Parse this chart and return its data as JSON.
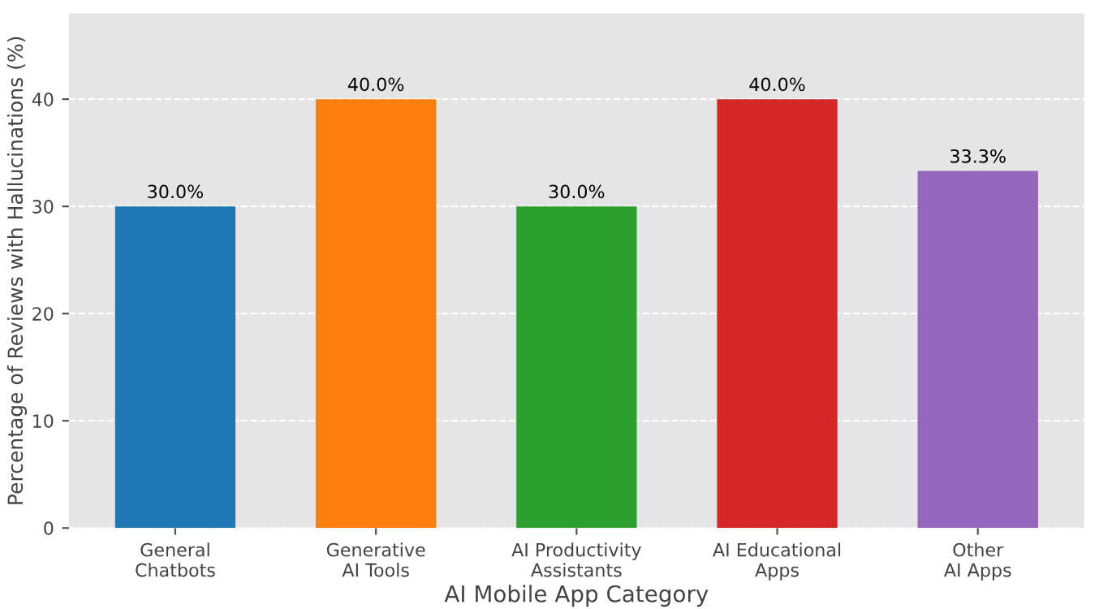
{
  "chart_data": {
    "type": "bar",
    "xlabel": "AI Mobile App Category",
    "ylabel": "Percentage of Reviews with Hallucinations (%)",
    "categories": [
      "General\nChatbots",
      "Generative\nAI Tools",
      "AI Productivity\nAssistants",
      "AI Educational\nApps",
      "Other\nAI Apps"
    ],
    "values": [
      30.0,
      40.0,
      30.0,
      40.0,
      33.3
    ],
    "colors": [
      "#1f77b4",
      "#ff7f0e",
      "#2ca02c",
      "#d62728",
      "#9467bd"
    ],
    "value_labels": [
      "30.0%",
      "40.0%",
      "30.0%",
      "40.0%",
      "33.3%"
    ],
    "ylim": [
      0,
      48
    ],
    "yticks": [
      0,
      10,
      20,
      30,
      40
    ],
    "grid": "y"
  }
}
